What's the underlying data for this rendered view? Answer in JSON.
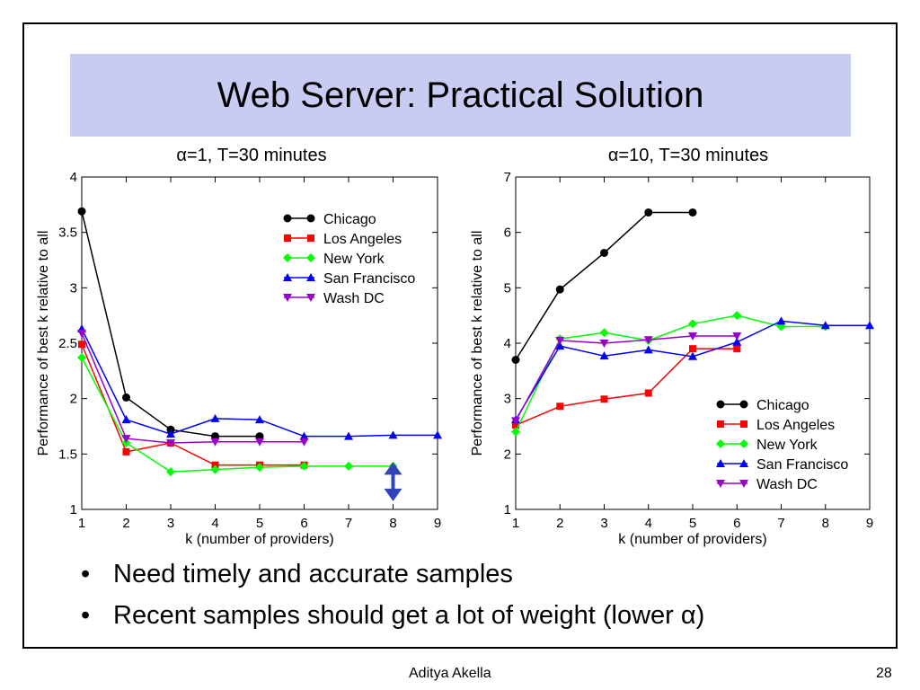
{
  "slide": {
    "title": "Web Server: Practical Solution",
    "bullets": [
      "Need timely and accurate samples",
      "Recent samples should get a lot of weight (lower α)"
    ],
    "footer_author": "Aditya Akella",
    "page_number": "28",
    "title_band_color": "#c8ccf2"
  },
  "chart_data": [
    {
      "type": "line",
      "title": "α=1, T=30 minutes",
      "xlabel": "k (number of providers)",
      "ylabel": "Performance of best k relative to all",
      "xlim": [
        1,
        9
      ],
      "ylim": [
        1,
        4
      ],
      "xticks": [
        1,
        2,
        3,
        4,
        5,
        6,
        7,
        8,
        9
      ],
      "yticks": [
        1,
        1.5,
        2,
        2.5,
        3,
        3.5,
        4
      ],
      "ytick_labels": [
        "1",
        "1.5",
        "2",
        "2.5",
        "3",
        "3.5",
        "4"
      ],
      "legend_position": "top-right",
      "grid": false,
      "annotation": "double-headed arrow at k=8 spanning 1.2 to 1.4",
      "series": [
        {
          "name": "Chicago",
          "color": "#000000",
          "marker": "circle",
          "points": [
            [
              1,
              3.69
            ],
            [
              2,
              2.01
            ],
            [
              3,
              1.72
            ],
            [
              4,
              1.66
            ],
            [
              5,
              1.66
            ]
          ]
        },
        {
          "name": "Los Angeles",
          "color": "#ff0000",
          "marker": "square",
          "points": [
            [
              1,
              2.49
            ],
            [
              2,
              1.52
            ],
            [
              3,
              1.6
            ],
            [
              4,
              1.4
            ],
            [
              5,
              1.4
            ],
            [
              6,
              1.4
            ]
          ]
        },
        {
          "name": "New York",
          "color": "#00ff00",
          "marker": "diamond",
          "points": [
            [
              1,
              2.37
            ],
            [
              2,
              1.6
            ],
            [
              3,
              1.34
            ],
            [
              4,
              1.36
            ],
            [
              5,
              1.38
            ],
            [
              6,
              1.39
            ],
            [
              7,
              1.39
            ],
            [
              8,
              1.39
            ]
          ]
        },
        {
          "name": "San Francisco",
          "color": "#0000ff",
          "marker": "triangle-up",
          "points": [
            [
              1,
              2.63
            ],
            [
              2,
              1.81
            ],
            [
              3,
              1.68
            ],
            [
              4,
              1.82
            ],
            [
              5,
              1.81
            ],
            [
              6,
              1.66
            ],
            [
              7,
              1.66
            ],
            [
              8,
              1.67
            ],
            [
              9,
              1.67
            ]
          ]
        },
        {
          "name": "Wash DC",
          "color": "#9900cc",
          "marker": "triangle-down",
          "points": [
            [
              1,
              2.59
            ],
            [
              2,
              1.64
            ],
            [
              3,
              1.6
            ],
            [
              4,
              1.61
            ],
            [
              5,
              1.61
            ],
            [
              6,
              1.61
            ]
          ]
        }
      ]
    },
    {
      "type": "line",
      "title": "α=10, T=30 minutes",
      "xlabel": "k (number of providers)",
      "ylabel": "Performance of best k relative to all",
      "xlim": [
        1,
        9
      ],
      "ylim": [
        1,
        7
      ],
      "xticks": [
        1,
        2,
        3,
        4,
        5,
        6,
        7,
        8,
        9
      ],
      "yticks": [
        1,
        2,
        3,
        4,
        5,
        6,
        7
      ],
      "ytick_labels": [
        "1",
        "2",
        "3",
        "4",
        "5",
        "6",
        "7"
      ],
      "legend_position": "bottom-right",
      "grid": false,
      "series": [
        {
          "name": "Chicago",
          "color": "#000000",
          "marker": "circle",
          "points": [
            [
              1,
              3.7
            ],
            [
              2,
              4.97
            ],
            [
              3,
              5.63
            ],
            [
              4,
              6.36
            ],
            [
              5,
              6.36
            ]
          ]
        },
        {
          "name": "Los Angeles",
          "color": "#ff0000",
          "marker": "square",
          "points": [
            [
              1,
              2.52
            ],
            [
              2,
              2.86
            ],
            [
              3,
              2.99
            ],
            [
              4,
              3.1
            ],
            [
              5,
              3.9
            ],
            [
              6,
              3.9
            ]
          ]
        },
        {
          "name": "New York",
          "color": "#00ff00",
          "marker": "diamond",
          "points": [
            [
              1,
              2.4
            ],
            [
              2,
              4.08
            ],
            [
              3,
              4.19
            ],
            [
              4,
              4.05
            ],
            [
              5,
              4.35
            ],
            [
              6,
              4.5
            ],
            [
              7,
              4.3
            ],
            [
              8,
              4.3
            ]
          ]
        },
        {
          "name": "San Francisco",
          "color": "#0000ff",
          "marker": "triangle-up",
          "points": [
            [
              1,
              2.62
            ],
            [
              2,
              3.95
            ],
            [
              3,
              3.77
            ],
            [
              4,
              3.88
            ],
            [
              5,
              3.76
            ],
            [
              6,
              4.02
            ],
            [
              7,
              4.4
            ],
            [
              8,
              4.32
            ],
            [
              9,
              4.32
            ]
          ]
        },
        {
          "name": "Wash DC",
          "color": "#9900cc",
          "marker": "triangle-down",
          "points": [
            [
              1,
              2.6
            ],
            [
              2,
              4.05
            ],
            [
              3,
              4.0
            ],
            [
              4,
              4.06
            ],
            [
              5,
              4.13
            ],
            [
              6,
              4.13
            ]
          ]
        }
      ]
    }
  ]
}
